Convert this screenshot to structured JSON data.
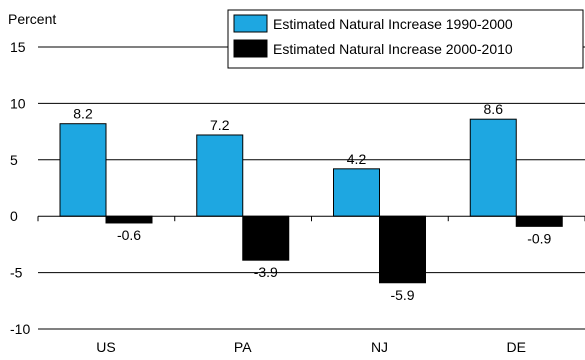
{
  "chart_data": {
    "type": "bar",
    "ylabel": "Percent",
    "ylim": [
      -10,
      15
    ],
    "yticks": [
      15,
      10,
      5,
      0,
      -5,
      -10
    ],
    "grid": true,
    "legend_position": "top-right",
    "categories": [
      "US",
      "PA",
      "NJ",
      "DE"
    ],
    "series": [
      {
        "name": "Estimated Natural Increase 1990-2000",
        "color": "#1ea7e1",
        "values": [
          8.2,
          7.2,
          4.2,
          8.6
        ]
      },
      {
        "name": "Estimated Natural Increase 2000-2010",
        "color": "#000000",
        "values": [
          -0.6,
          -3.9,
          -5.9,
          -0.9
        ]
      }
    ]
  }
}
